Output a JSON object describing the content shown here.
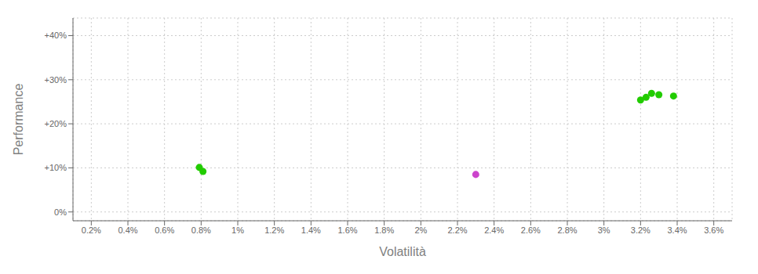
{
  "chart_data": {
    "type": "scatter",
    "xlabel": "Volatilità",
    "ylabel": "Performance",
    "xlim": [
      0.001,
      0.037
    ],
    "ylim": [
      -0.02,
      0.44
    ],
    "xticks": [
      {
        "value": 0.002,
        "label": "0.2%"
      },
      {
        "value": 0.004,
        "label": "0.4%"
      },
      {
        "value": 0.006,
        "label": "0.6%"
      },
      {
        "value": 0.008,
        "label": "0.8%"
      },
      {
        "value": 0.01,
        "label": "1%"
      },
      {
        "value": 0.012,
        "label": "1.2%"
      },
      {
        "value": 0.014,
        "label": "1.4%"
      },
      {
        "value": 0.016,
        "label": "1.6%"
      },
      {
        "value": 0.018,
        "label": "1.8%"
      },
      {
        "value": 0.02,
        "label": "2%"
      },
      {
        "value": 0.022,
        "label": "2.2%"
      },
      {
        "value": 0.024,
        "label": "2.4%"
      },
      {
        "value": 0.026,
        "label": "2.6%"
      },
      {
        "value": 0.028,
        "label": "2.8%"
      },
      {
        "value": 0.03,
        "label": "3%"
      },
      {
        "value": 0.032,
        "label": "3.2%"
      },
      {
        "value": 0.034,
        "label": "3.4%"
      },
      {
        "value": 0.036,
        "label": "3.6%"
      }
    ],
    "yticks": [
      {
        "value": 0.0,
        "label": "0%"
      },
      {
        "value": 0.1,
        "label": "+10%"
      },
      {
        "value": 0.2,
        "label": "+20%"
      },
      {
        "value": 0.3,
        "label": "+30%"
      },
      {
        "value": 0.4,
        "label": "+40%"
      }
    ],
    "grid": true,
    "series": [
      {
        "color": "#22cc00",
        "x": [
          0.0079,
          0.0081,
          0.032,
          0.0323,
          0.0326,
          0.033,
          0.0338
        ],
        "values": [
          0.101,
          0.092,
          0.254,
          0.26,
          0.269,
          0.266,
          0.263
        ]
      },
      {
        "color": "#cc44cc",
        "x": [
          0.023
        ],
        "values": [
          0.085
        ]
      }
    ]
  }
}
